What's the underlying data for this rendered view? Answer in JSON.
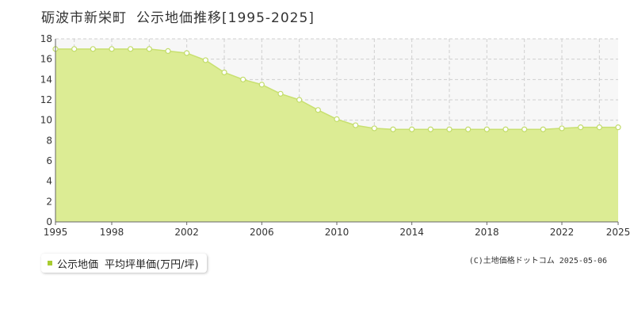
{
  "title": {
    "location": "砺波市新栄町",
    "subject": "公示地価推移[1995-2025]"
  },
  "legend": {
    "series_label": "公示地価",
    "unit_label": "平均坪単価(万円/坪)"
  },
  "copyright": "(C)土地価格ドットコム 2025-05-06",
  "colors": {
    "area_fill": "#dcec94",
    "line": "#c8e070",
    "marker_fill": "#ffffff",
    "marker_stroke": "#c2dc6a",
    "legend_swatch": "#a8cc30",
    "plot_bg": "#f7f7f7",
    "grid": "#cfcfcf"
  },
  "chart_data": {
    "type": "area",
    "x": [
      1995,
      1996,
      1997,
      1998,
      1999,
      2000,
      2001,
      2002,
      2003,
      2004,
      2005,
      2006,
      2007,
      2008,
      2009,
      2010,
      2011,
      2012,
      2013,
      2014,
      2015,
      2016,
      2017,
      2018,
      2019,
      2020,
      2021,
      2022,
      2023,
      2024,
      2025
    ],
    "series": [
      {
        "name": "公示地価",
        "values": [
          17.0,
          17.0,
          17.0,
          17.0,
          17.0,
          17.0,
          16.8,
          16.6,
          15.9,
          14.7,
          14.0,
          13.5,
          12.6,
          12.0,
          11.0,
          10.1,
          9.5,
          9.2,
          9.1,
          9.1,
          9.1,
          9.1,
          9.1,
          9.1,
          9.1,
          9.1,
          9.1,
          9.2,
          9.3,
          9.3,
          9.3
        ]
      }
    ],
    "xlim": [
      1995,
      2025
    ],
    "ylim": [
      0,
      18
    ],
    "xticks": [
      "1995",
      "1998",
      "2002",
      "2006",
      "2010",
      "2014",
      "2018",
      "2022",
      "2025"
    ],
    "yticks": [
      "0",
      "2",
      "4",
      "6",
      "8",
      "10",
      "12",
      "14",
      "16",
      "18"
    ],
    "grid": true
  }
}
